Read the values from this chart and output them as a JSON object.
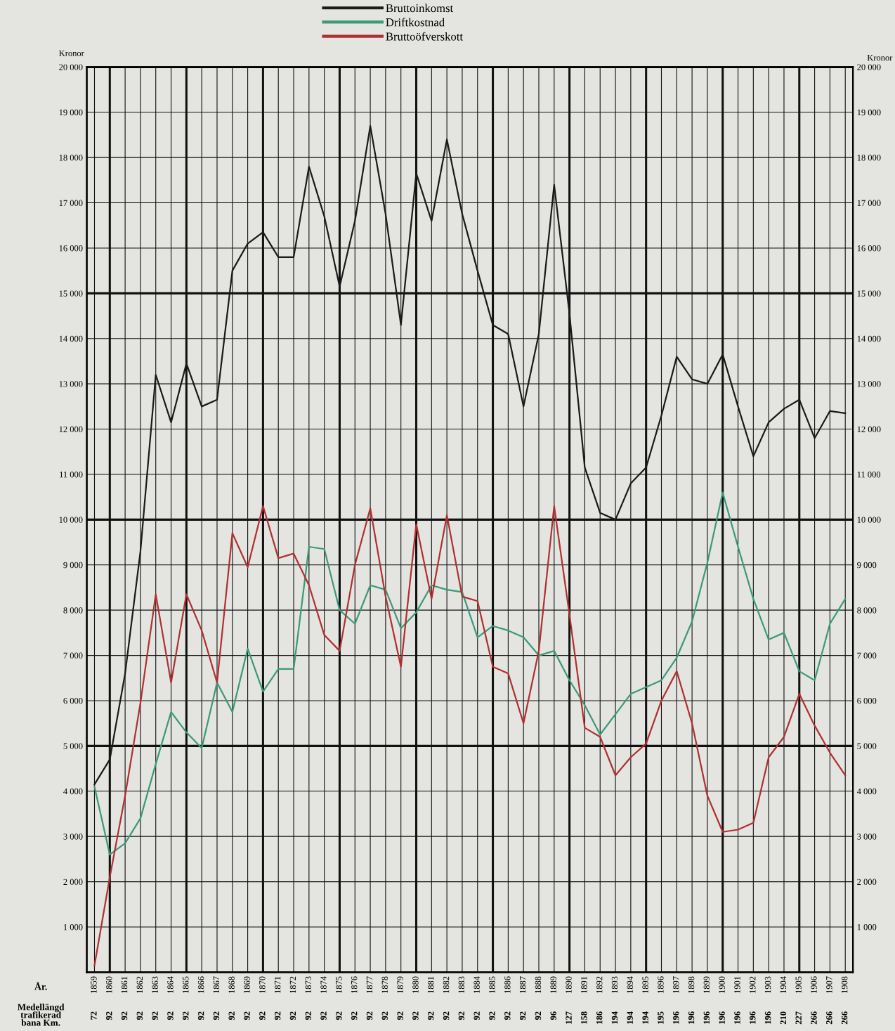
{
  "chart_data": {
    "type": "line",
    "categories": [
      "1859",
      "1860",
      "1861",
      "1862",
      "1863",
      "1864",
      "1865",
      "1866",
      "1867",
      "1868",
      "1869",
      "1870",
      "1871",
      "1872",
      "1873",
      "1874",
      "1875",
      "1876",
      "1877",
      "1878",
      "1879",
      "1880",
      "1881",
      "1882",
      "1883",
      "1884",
      "1885",
      "1886",
      "1887",
      "1888",
      "1889",
      "1890",
      "1891",
      "1892",
      "1893",
      "1894",
      "1895",
      "1896",
      "1897",
      "1898",
      "1899",
      "1900",
      "1901",
      "1902",
      "1903",
      "1904",
      "1905",
      "1906",
      "1907",
      "1908"
    ],
    "series": [
      {
        "name": "Bruttoinkomst",
        "color": "#1a1a1a",
        "values": [
          4150,
          4700,
          6600,
          9300,
          13200,
          12150,
          13450,
          12500,
          12650,
          15500,
          16100,
          16350,
          15800,
          15800,
          17800,
          16700,
          15150,
          16600,
          18700,
          16750,
          14300,
          17650,
          16600,
          18400,
          16750,
          15500,
          14300,
          14100,
          12500,
          14100,
          17400,
          14550,
          11150,
          10150,
          10000,
          10800,
          11150,
          12300,
          13600,
          13100,
          13000,
          13650,
          12500,
          11400,
          12150,
          12450,
          12650,
          11800,
          12400,
          12350
        ]
      },
      {
        "name": "Driftkostnad",
        "color": "#3a9a7a",
        "values": [
          4100,
          2600,
          2850,
          3400,
          4600,
          5750,
          5300,
          4950,
          6400,
          5750,
          7150,
          6200,
          6700,
          6700,
          9400,
          9350,
          8000,
          7700,
          8550,
          8450,
          7600,
          7950,
          8550,
          8450,
          8400,
          7400,
          7650,
          7550,
          7400,
          7000,
          7100,
          6450,
          5900,
          5250,
          5700,
          6150,
          6300,
          6450,
          6950,
          7750,
          9050,
          10600,
          9400,
          8250,
          7350,
          7500,
          6650,
          6450,
          7700,
          8250
        ]
      },
      {
        "name": "Bruttoöfverskott",
        "color": "#b03030",
        "values": [
          150,
          2100,
          3900,
          5950,
          8350,
          6400,
          8350,
          7550,
          6400,
          9700,
          8950,
          10300,
          9150,
          9250,
          8550,
          7450,
          7100,
          9000,
          10250,
          8300,
          6750,
          9900,
          8250,
          10100,
          8300,
          8200,
          6750,
          6600,
          5500,
          7100,
          10300,
          7900,
          5400,
          5200,
          4350,
          4750,
          5050,
          6000,
          6650,
          5500,
          3900,
          3100,
          3150,
          3300,
          4750,
          5200,
          6150,
          5450,
          4850,
          4350
        ]
      }
    ],
    "ylim": [
      0,
      20000
    ],
    "yticks": [
      {
        "value": 1000,
        "label": "1 000"
      },
      {
        "value": 2000,
        "label": "2 000"
      },
      {
        "value": 3000,
        "label": "3 000"
      },
      {
        "value": 4000,
        "label": "4 000"
      },
      {
        "value": 5000,
        "label": "5 000"
      },
      {
        "value": 6000,
        "label": "6 000"
      },
      {
        "value": 7000,
        "label": "7 000"
      },
      {
        "value": 8000,
        "label": "8 000"
      },
      {
        "value": 9000,
        "label": "9 000"
      },
      {
        "value": 10000,
        "label": "10 000"
      },
      {
        "value": 11000,
        "label": "11 000"
      },
      {
        "value": 12000,
        "label": "12 000"
      },
      {
        "value": 13000,
        "label": "13 000"
      },
      {
        "value": 14000,
        "label": "14 000"
      },
      {
        "value": 15000,
        "label": "15 000"
      },
      {
        "value": 16000,
        "label": "16 000"
      },
      {
        "value": 17000,
        "label": "17 000"
      },
      {
        "value": 18000,
        "label": "18 000"
      },
      {
        "value": 19000,
        "label": "19 000"
      },
      {
        "value": 20000,
        "label": "20 000"
      }
    ],
    "y2lim": [
      0,
      20000
    ],
    "y2ticks": [
      {
        "value": 1000,
        "label": "1 000"
      },
      {
        "value": 2000,
        "label": "2 000"
      },
      {
        "value": 3000,
        "label": "3 000"
      },
      {
        "value": 4000,
        "label": "4 000"
      },
      {
        "value": 5000,
        "label": "5 000"
      },
      {
        "value": 6000,
        "label": "6 000"
      },
      {
        "value": 7000,
        "label": "7 000"
      },
      {
        "value": 8000,
        "label": "8 000"
      },
      {
        "value": 9000,
        "label": "9 000"
      },
      {
        "value": 10000,
        "label": "10 000"
      },
      {
        "value": 11000,
        "label": "11 000"
      },
      {
        "value": 12000,
        "label": "12 000"
      },
      {
        "value": 13000,
        "label": "13 000"
      },
      {
        "value": 14000,
        "label": "14 000"
      },
      {
        "value": 15000,
        "label": "15 000"
      },
      {
        "value": 16000,
        "label": "16 000"
      },
      {
        "value": 17000,
        "label": "17 000"
      },
      {
        "value": 18000,
        "label": "18 000"
      },
      {
        "value": 19000,
        "label": "19 000"
      },
      {
        "value": 20000,
        "label": "20 000"
      }
    ],
    "ylabel": "Kronor",
    "y2label": "Kronor",
    "xlabel": "År.",
    "grid": true,
    "legend": "top",
    "marker": "none",
    "line_style": "solid",
    "annotations": [
      "Medellängd\ntrafikerad\nbana Km.",
      "72",
      "92",
      "92",
      "92",
      "92",
      "92",
      "92",
      "92",
      "92",
      "92",
      "92",
      "92",
      "92",
      "92",
      "92",
      "92",
      "92",
      "92",
      "92",
      "92",
      "92",
      "92",
      "92",
      "92",
      "92",
      "92",
      "92",
      "92",
      "92",
      "92",
      "96",
      "127",
      "158",
      "186",
      "194",
      "194",
      "194",
      "195",
      "196",
      "196",
      "196",
      "196",
      "196",
      "196",
      "196",
      "210",
      "227",
      "266",
      "266",
      "266"
    ]
  }
}
